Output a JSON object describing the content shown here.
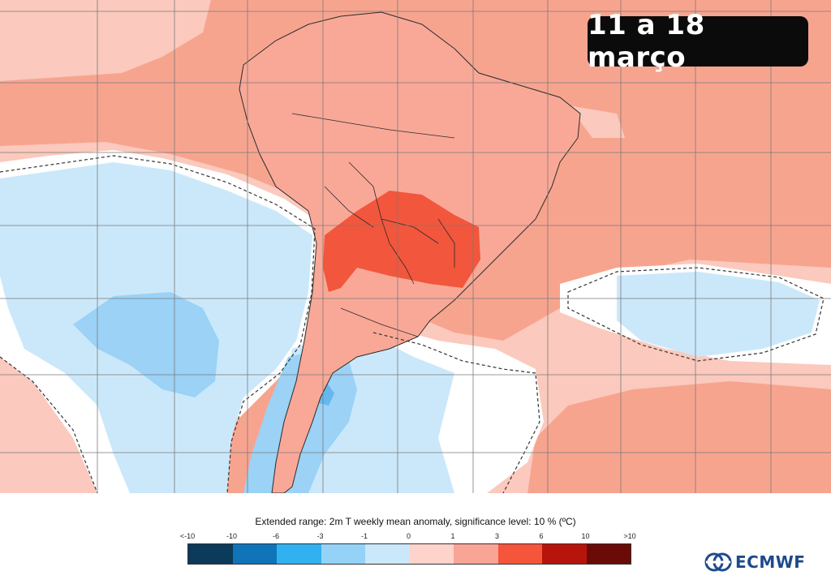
{
  "header": {
    "date_label": "11 a 18 março"
  },
  "legend": {
    "title": "Extended range: 2m T weekly mean anomaly, significance level: 10 % (ºC)",
    "ticks": [
      "<-10",
      "-10",
      "-6",
      "-3",
      "-1",
      "0",
      "1",
      "3",
      "6",
      "10",
      ">10"
    ],
    "colors": [
      "#0b3a5a",
      "#0f74b8",
      "#32b1f2",
      "#94d3f7",
      "#cbe8fa",
      "#fdd3cb",
      "#f8a595",
      "#f4553b",
      "#b7150c",
      "#6b0b08"
    ]
  },
  "map": {
    "region": "South America",
    "anomaly_colors": {
      "land_dry": "#f9a897",
      "ocean_warm": "#f7a48f",
      "ocean_light": "#fbc9bd",
      "hot_core": "#f2563c",
      "cool": "#cbe8fa",
      "cooler": "#9bd2f6",
      "coolest": "#64b8ef",
      "neutral": "#ffffff"
    }
  },
  "branding": {
    "logo_text": "ECMWF"
  }
}
